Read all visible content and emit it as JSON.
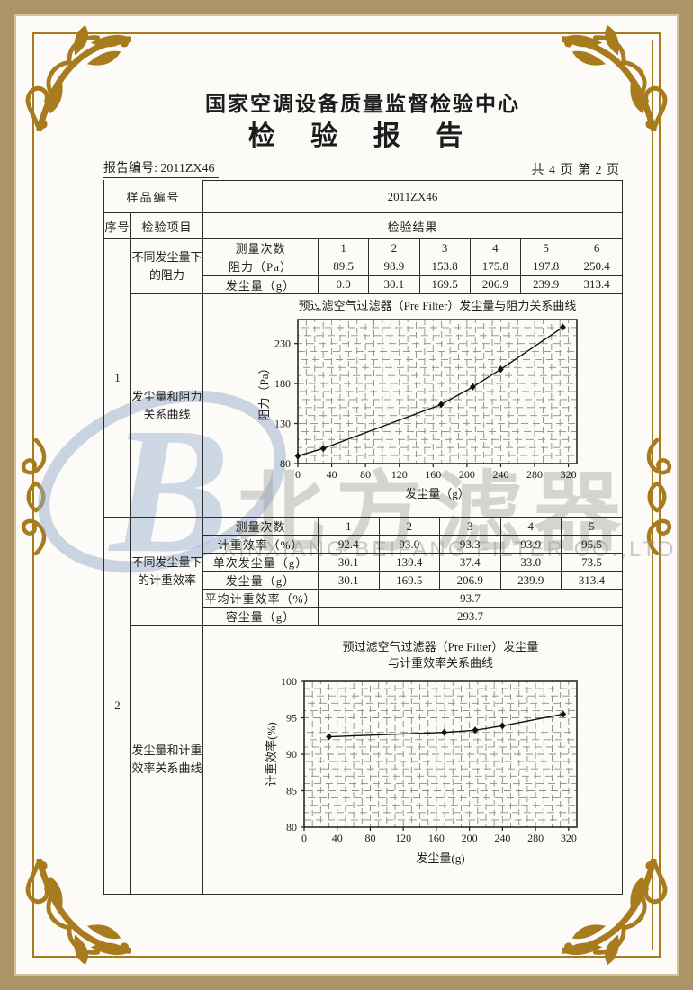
{
  "header": {
    "org": "国家空调设备质量监督检验中心",
    "title": "检 验 报 告",
    "report_no_label": "报告编号:",
    "report_no": "2011ZX46",
    "page_info": "共 4 页 第 2 页"
  },
  "main_table": {
    "sample_label": "样品编号",
    "sample_value": "2011ZX46",
    "col_seq": "序号",
    "col_item": "检验项目",
    "col_result": "检验结果",
    "blocks": [
      {
        "seq": "1",
        "item_top": "不同发尘量下的阻力",
        "item_bottom": "发尘量和阻力关系曲线"
      },
      {
        "seq": "2",
        "item_top": "不同发尘量下的计重效率",
        "item_bottom": "发尘量和计重效率关系曲线"
      }
    ]
  },
  "sub_tables": [
    {
      "rows": [
        {
          "label": "测量次数",
          "values": [
            "1",
            "2",
            "3",
            "4",
            "5",
            "6"
          ]
        },
        {
          "label": "阻力（Pa）",
          "values": [
            "89.5",
            "98.9",
            "153.8",
            "175.8",
            "197.8",
            "250.4"
          ]
        },
        {
          "label": "发尘量（g）",
          "values": [
            "0.0",
            "30.1",
            "169.5",
            "206.9",
            "239.9",
            "313.4"
          ]
        }
      ]
    },
    {
      "rows": [
        {
          "label": "测量次数",
          "values": [
            "1",
            "2",
            "3",
            "4",
            "5"
          ]
        },
        {
          "label": "计重效率（%）",
          "values": [
            "92.4",
            "93.0",
            "93.3",
            "93.9",
            "95.5"
          ]
        },
        {
          "label": "单次发尘量（g）",
          "values": [
            "30.1",
            "139.4",
            "37.4",
            "33.0",
            "73.5"
          ]
        },
        {
          "label": "发尘量（g）",
          "values": [
            "30.1",
            "169.5",
            "206.9",
            "239.9",
            "313.4"
          ]
        },
        {
          "label": "平均计重效率（%）",
          "values": [
            "93.7"
          ],
          "span": true
        },
        {
          "label": "容尘量（g）",
          "values": [
            "293.7"
          ],
          "span": true
        }
      ]
    }
  ],
  "chart_data": [
    {
      "type": "line",
      "title_lines": [
        "预过滤空气过滤器（Pre Filter）发尘量与阻力关系曲线"
      ],
      "xlabel": "发尘量（g）",
      "ylabel": "阻力（Pa）",
      "x": [
        0.0,
        30.1,
        169.5,
        206.9,
        239.9,
        313.4
      ],
      "y": [
        89.5,
        98.9,
        153.8,
        175.8,
        197.8,
        250.4
      ],
      "xlim": [
        0,
        330
      ],
      "ylim": [
        80,
        260
      ],
      "xticks": [
        0,
        40,
        80,
        120,
        160,
        200,
        240,
        280,
        320
      ],
      "yticks": [
        80,
        130,
        180,
        230
      ],
      "grid": true,
      "marker": "diamond"
    },
    {
      "type": "line",
      "title_lines": [
        "预过滤空气过滤器（Pre Filter）发尘量",
        "与计重效率关系曲线"
      ],
      "xlabel": "发尘量(g)",
      "ylabel": "计重效率(%)",
      "x": [
        30.1,
        169.5,
        206.9,
        239.9,
        313.4
      ],
      "y": [
        92.4,
        93.0,
        93.3,
        93.9,
        95.5
      ],
      "xlim": [
        0,
        330
      ],
      "ylim": [
        80,
        100
      ],
      "xticks": [
        0,
        40,
        80,
        120,
        160,
        200,
        240,
        280,
        320
      ],
      "yticks": [
        80,
        85,
        90,
        95,
        100
      ],
      "grid": true,
      "marker": "diamond"
    }
  ],
  "watermark": {
    "logo_letter": "B",
    "company_cn": "北方滤器",
    "company_en": "XINXIANG BEIFANG FILTER CO.,LTD."
  },
  "colors": {
    "frame_gold": "#a87c1e",
    "band_tan": "#ac9468",
    "watermark_blue": "#96acd0",
    "watermark_gray": "#9e9e9e",
    "table_line": "#2e2e2e"
  }
}
